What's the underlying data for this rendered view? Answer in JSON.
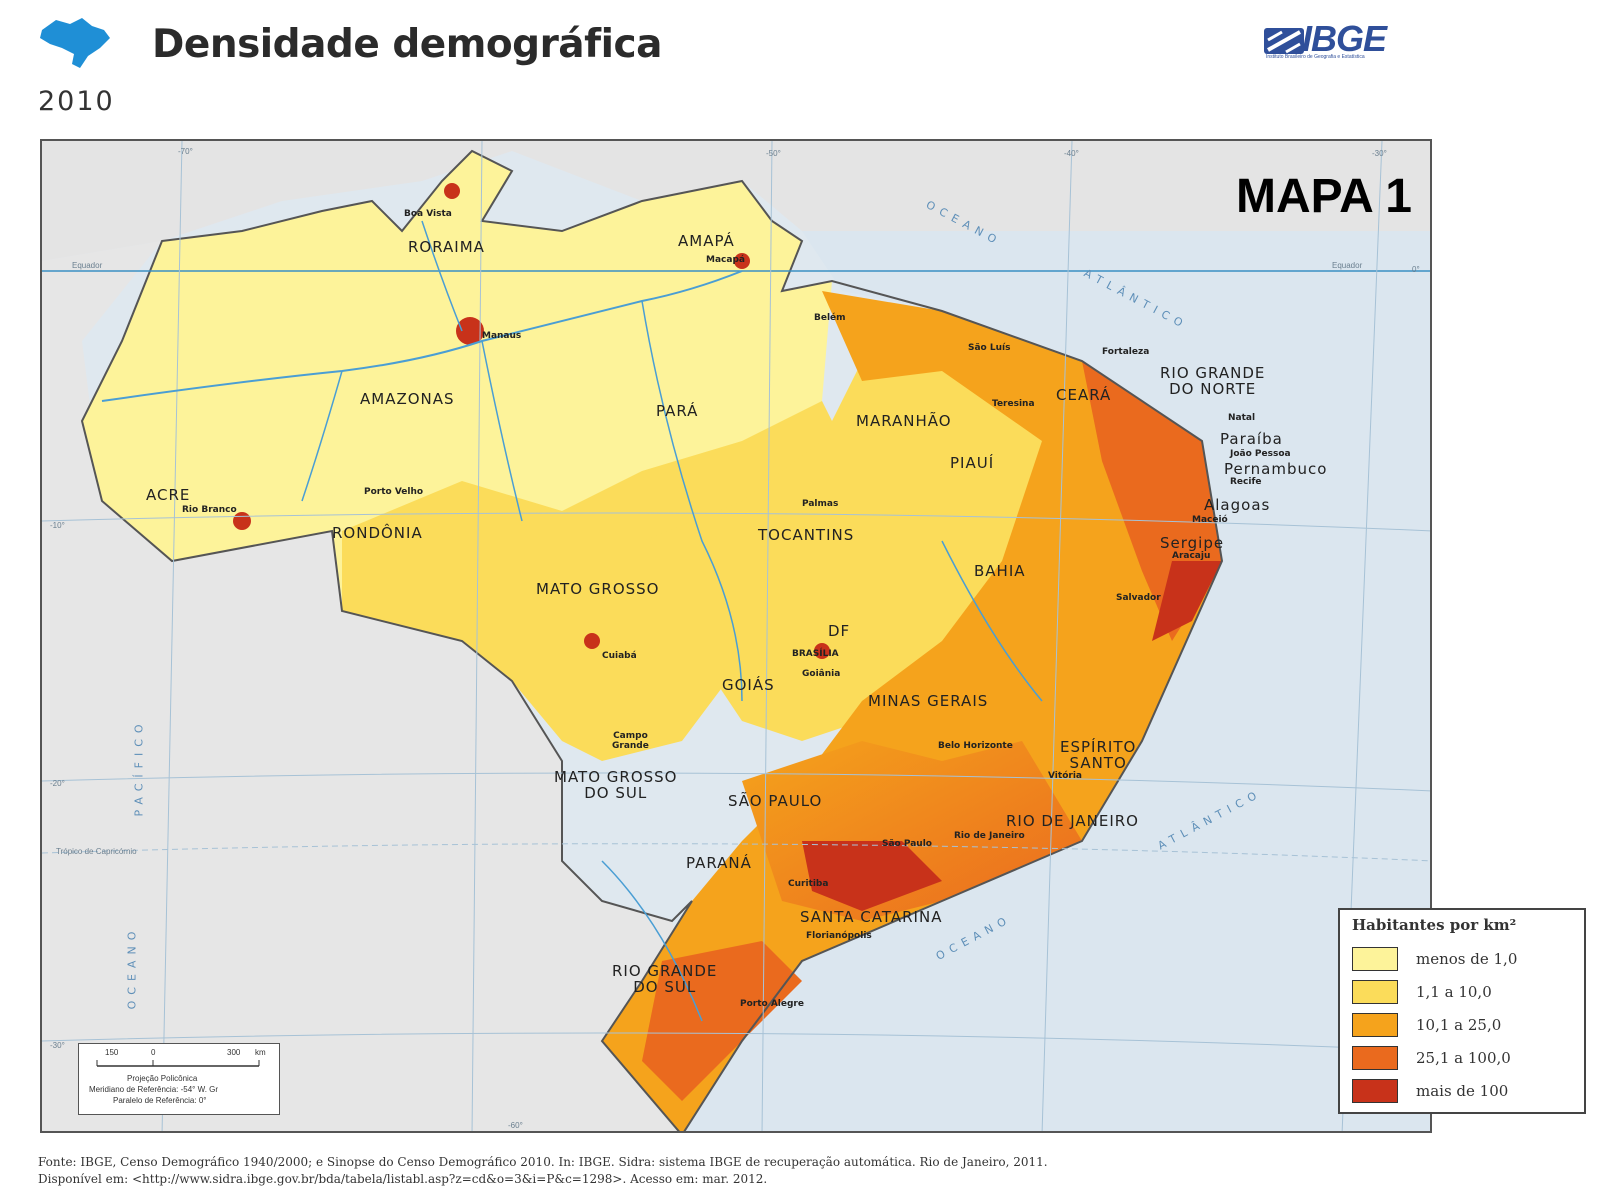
{
  "header": {
    "title": "Densidade demográfica",
    "year": "2010",
    "logo_text": "IBGE",
    "logo_subtext": "Instituto Brasileiro de Geografia e Estatística"
  },
  "map": {
    "label": "MAPA 1",
    "states": {
      "roraima": "RORAIMA",
      "amapa": "AMAPÁ",
      "amazonas": "AMAZONAS",
      "para": "PARÁ",
      "maranhao": "MARANHÃO",
      "ceara": "CEARÁ",
      "rio_grande_do_norte_1": "RIO GRANDE",
      "rio_grande_do_norte_2": "DO NORTE",
      "paraiba": "Paraíba",
      "pernambuco": "Pernambuco",
      "alagoas": "Alagoas",
      "sergipe": "Sergipe",
      "piaui": "PIAUÍ",
      "acre": "ACRE",
      "rondonia": "RONDÔNIA",
      "tocantins": "TOCANTINS",
      "bahia": "BAHIA",
      "mato_grosso": "MATO GROSSO",
      "df": "DF",
      "goias": "GOIÁS",
      "minas_gerais": "MINAS GERAIS",
      "espirito_santo_1": "ESPÍRITO",
      "espirito_santo_2": "SANTO",
      "mato_grosso_do_sul_1": "MATO GROSSO",
      "mato_grosso_do_sul_2": "DO SUL",
      "sao_paulo": "SÃO PAULO",
      "rio_de_janeiro": "RIO DE JANEIRO",
      "parana": "PARANÁ",
      "santa_catarina": "SANTA CATARINA",
      "rio_grande_do_sul_1": "RIO GRANDE",
      "rio_grande_do_sul_2": "DO SUL"
    },
    "cities": {
      "boa_vista": "Boa Vista",
      "macapa": "Macapá",
      "belem": "Belém",
      "manaus": "Manaus",
      "sao_luis": "São Luís",
      "fortaleza": "Fortaleza",
      "teresina": "Teresina",
      "natal": "Natal",
      "joao_pessoa": "João Pessoa",
      "recife": "Recife",
      "maceio": "Maceió",
      "aracaju": "Aracaju",
      "salvador": "Salvador",
      "porto_velho": "Porto Velho",
      "rio_branco": "Rio Branco",
      "palmas": "Palmas",
      "cuiaba": "Cuiabá",
      "brasilia": "BRASÍLIA",
      "goiania": "Goiânia",
      "belo_horizonte": "Belo Horizonte",
      "vitoria": "Vitória",
      "campo_grande_1": "Campo",
      "campo_grande_2": "Grande",
      "sao_paulo": "São Paulo",
      "rio_de_janeiro": "Rio de Janeiro",
      "curitiba": "Curitiba",
      "florianopolis": "Florianópolis",
      "porto_alegre": "Porto Alegre"
    },
    "oceans": {
      "atlantico_norte_1": "OCEANO",
      "atlantico_norte_2": "ATLÂNTICO",
      "atlantico_sul_1": "ATLÂNTICO",
      "atlantico_sul_2": "OCEANO",
      "pacifico_1": "PACÍFICO",
      "pacifico_2": "OCEANO"
    },
    "reference_lines": {
      "equador_left": "Equador",
      "equador_right": "Equador",
      "tropico": "Trópico de Capricórnio"
    },
    "coords": {
      "lon_70": "-70°",
      "lon_60": "-60°",
      "lon_50": "-50°",
      "lon_40": "-40°",
      "lon_30": "-30°",
      "lat_0": "0°",
      "lat_10": "-10°",
      "lat_20": "-20°",
      "lat_30": "-30°"
    },
    "scale": {
      "tick_150": "150",
      "tick_0": "0",
      "tick_300": "300",
      "unit": "km",
      "projection": "Projeção Policônica",
      "meridian": "Meridiano de Referência: -54° W. Gr",
      "parallel": "Paralelo de Referência: 0°"
    }
  },
  "legend": {
    "title": "Habitantes por km²",
    "items": [
      {
        "label": "menos de 1,0",
        "color": "#fdf39a"
      },
      {
        "label": "1,1 a 10,0",
        "color": "#fbdc5a"
      },
      {
        "label": "10,1 a 25,0",
        "color": "#f5a31c"
      },
      {
        "label": "25,1 a 100,0",
        "color": "#ea6a1e"
      },
      {
        "label": "mais de 100",
        "color": "#c8321a"
      }
    ]
  },
  "source": {
    "line1": "Fonte: IBGE, Censo Demográfico 1940/2000; e Sinopse do Censo Demográfico 2010. In: IBGE. Sidra: sistema IBGE de recuperação automática. Rio de Janeiro, 2011.",
    "line2": "Disponível em: <http://www.sidra.ibge.gov.br/bda/tabela/listabl.asp?z=cd&o=3&i=P&c=1298>. Acesso em: mar. 2012."
  }
}
